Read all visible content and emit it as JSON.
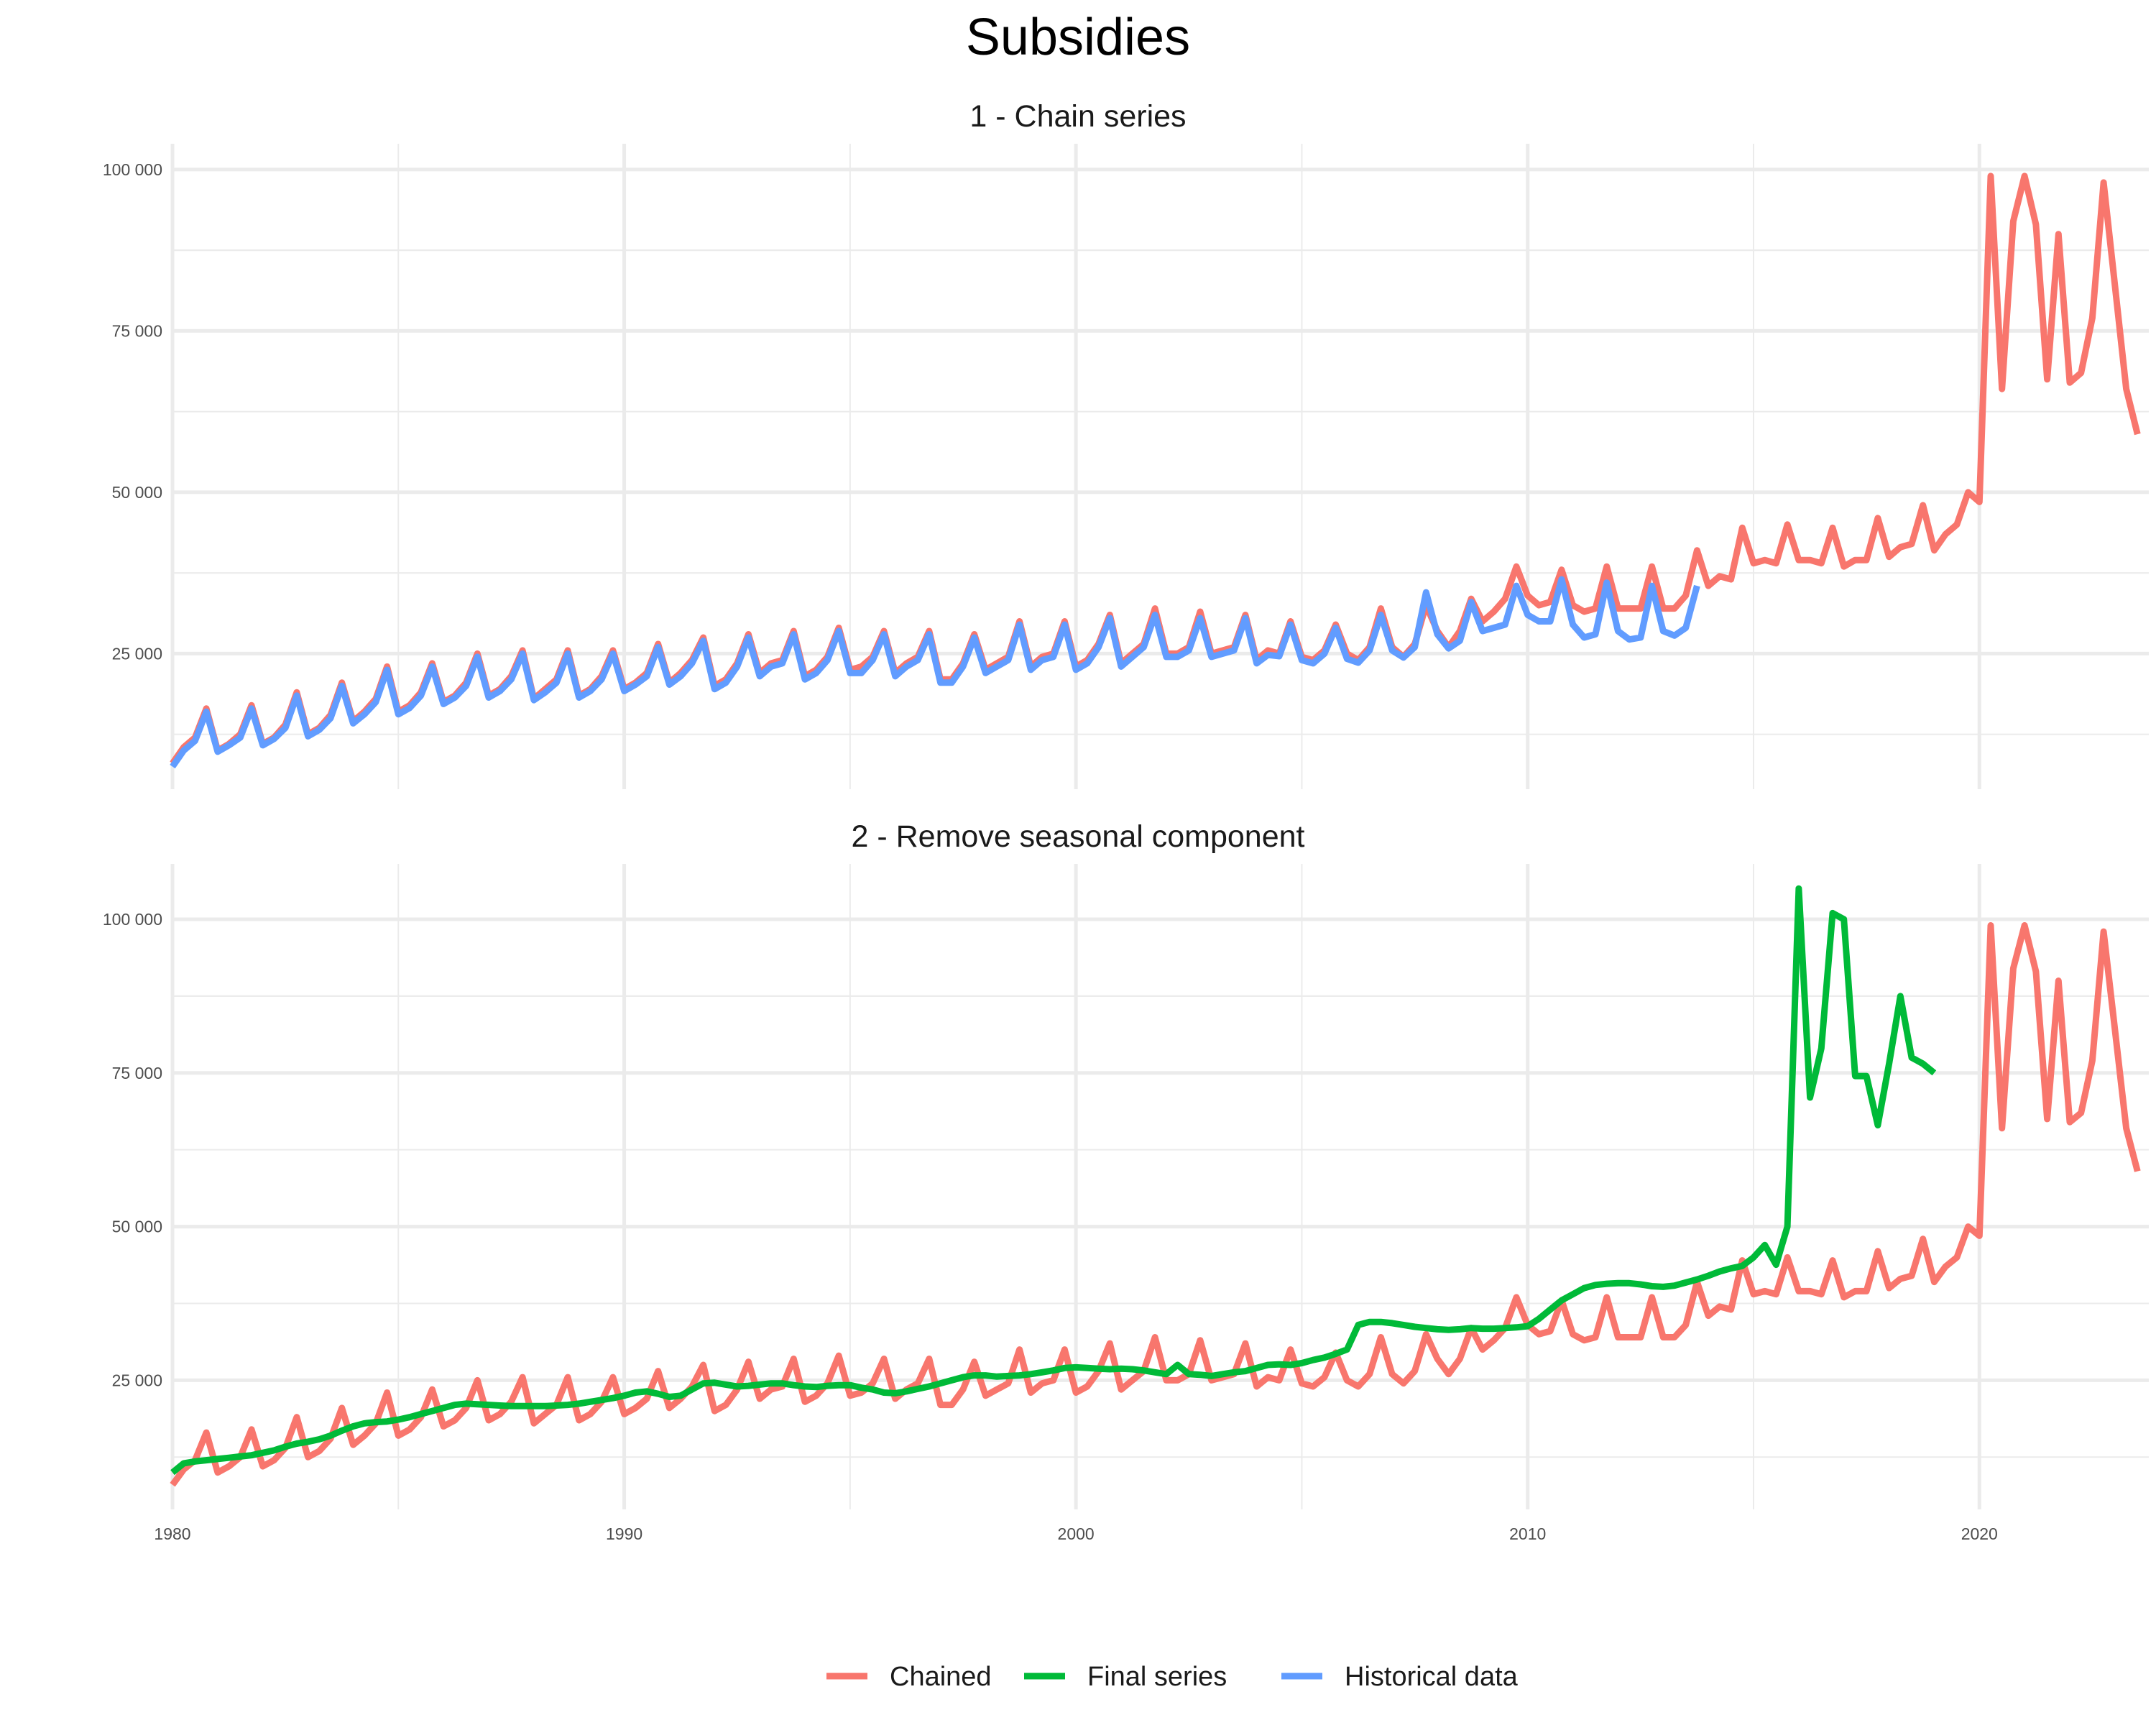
{
  "chart_data": {
    "type": "line",
    "title": "Subsidies",
    "x_axis": {
      "ticks": [
        1980,
        1990,
        2000,
        2010,
        2020
      ],
      "tick_labels": [
        "1980",
        "1990",
        "2000",
        "2010",
        "2020"
      ],
      "range": [
        1980,
        2023.75
      ]
    },
    "y_axis": {
      "ticks": [
        25000,
        50000,
        75000,
        100000
      ],
      "tick_labels": [
        "25 000",
        "50 000",
        "75 000",
        "100 000"
      ]
    },
    "grid": true,
    "legend_position": "bottom",
    "legend": [
      {
        "name": "Chained",
        "color": "#F8766D"
      },
      {
        "name": "Final series",
        "color": "#00BA38"
      },
      {
        "name": "Historical data",
        "color": "#619CFF"
      }
    ],
    "panels": [
      {
        "title": "1 - Chain series",
        "ylim": [
          4000,
          104000
        ],
        "series": [
          "Chained",
          "Historical data"
        ]
      },
      {
        "title": "2 - Remove seasonal component",
        "ylim": [
          4000,
          109000
        ],
        "series": [
          "Chained",
          "Final series"
        ]
      }
    ],
    "series": {
      "chained": {
        "name": "Chained",
        "x_start": 1980,
        "x_step": 0.25,
        "values": [
          8000,
          10500,
          12000,
          16500,
          10000,
          11000,
          12500,
          17000,
          11000,
          12000,
          14000,
          19000,
          12500,
          13500,
          15500,
          20500,
          14500,
          16000,
          18000,
          23000,
          16000,
          17000,
          19000,
          23500,
          17500,
          18500,
          20500,
          25000,
          18500,
          19500,
          21500,
          25500,
          18000,
          19500,
          21000,
          25500,
          18500,
          19500,
          21500,
          25500,
          19500,
          20500,
          22000,
          26500,
          20500,
          22000,
          24000,
          27500,
          20000,
          21000,
          23500,
          28000,
          22000,
          23500,
          24000,
          28500,
          21500,
          22500,
          24500,
          29000,
          22500,
          23000,
          24500,
          28500,
          22000,
          23500,
          24500,
          28500,
          21000,
          21000,
          23500,
          28000,
          22500,
          23500,
          24500,
          30000,
          23000,
          24500,
          25000,
          30000,
          23000,
          24000,
          26500,
          31000,
          23500,
          25000,
          26500,
          32000,
          25000,
          25000,
          26000,
          31500,
          25000,
          25500,
          26000,
          31000,
          24000,
          25500,
          25000,
          30000,
          24500,
          24000,
          25500,
          29500,
          25000,
          24000,
          26000,
          32000,
          26000,
          24500,
          26500,
          32500,
          28500,
          26000,
          28500,
          33500,
          30000,
          31500,
          33500,
          38500,
          34000,
          32500,
          33000,
          38000,
          32500,
          31500,
          32000,
          38500,
          32000,
          32000,
          32000,
          38500,
          32000,
          32000,
          34000,
          41000,
          35500,
          37000,
          36500,
          44500,
          39000,
          39500,
          39000,
          45000,
          39500,
          39500,
          39000,
          44500,
          38500,
          39500,
          39500,
          46000,
          40000,
          41500,
          42000,
          48000,
          41000,
          43500,
          45000,
          50000,
          48500,
          99000,
          66000,
          92000,
          99000,
          91500,
          67500,
          90000,
          67000,
          68500,
          77000,
          98000,
          82000,
          66000,
          59000
        ]
      },
      "historical": {
        "name": "Historical data",
        "x_start": 1980,
        "x_step": 0.25,
        "values": [
          7500,
          10000,
          11500,
          16000,
          9800,
          10800,
          12000,
          16500,
          10800,
          11800,
          13500,
          18500,
          12200,
          13200,
          15000,
          20000,
          14200,
          15600,
          17500,
          22500,
          15600,
          16600,
          18500,
          23000,
          17200,
          18200,
          20000,
          24500,
          18200,
          19200,
          21000,
          25000,
          17800,
          19000,
          20500,
          25000,
          18200,
          19200,
          21000,
          25000,
          19200,
          20200,
          21500,
          26000,
          20200,
          21500,
          23500,
          27000,
          19500,
          20500,
          23000,
          27500,
          21500,
          23000,
          23500,
          28000,
          21000,
          22000,
          24000,
          28500,
          22000,
          22000,
          24000,
          28000,
          21500,
          23000,
          24000,
          28000,
          20500,
          20500,
          23000,
          27500,
          22000,
          23000,
          24000,
          29500,
          22500,
          24000,
          24500,
          29500,
          22500,
          23500,
          26000,
          30500,
          23000,
          24500,
          26000,
          31000,
          24500,
          24500,
          25500,
          30500,
          24500,
          25000,
          25500,
          30500,
          23500,
          24800,
          24600,
          29500,
          24000,
          23500,
          25000,
          29000,
          24200,
          23600,
          25500,
          31000,
          25500,
          24400,
          26000,
          34500,
          28000,
          25800,
          27000,
          33000,
          28500,
          29000,
          29500,
          35500,
          31000,
          30000,
          30000,
          36500,
          29500,
          27500,
          28000,
          36000,
          28500,
          27200,
          27500,
          35500,
          28500,
          27800,
          29000,
          35500
        ]
      },
      "final": {
        "name": "Final series",
        "x_start": 1980,
        "x_step": 0.25,
        "values": [
          10000,
          11500,
          11800,
          12000,
          12200,
          12400,
          12600,
          12800,
          13200,
          13600,
          14200,
          14700,
          15000,
          15400,
          16000,
          16800,
          17500,
          18000,
          18200,
          18300,
          18600,
          19000,
          19500,
          20000,
          20500,
          21000,
          21200,
          21100,
          21000,
          20900,
          20800,
          20800,
          20800,
          20800,
          20900,
          21000,
          21200,
          21500,
          21800,
          22100,
          22500,
          23000,
          23200,
          22800,
          22300,
          22500,
          23500,
          24500,
          24600,
          24300,
          24000,
          24100,
          24300,
          24500,
          24500,
          24200,
          24000,
          23900,
          24100,
          24200,
          24200,
          23800,
          23500,
          23000,
          22900,
          23200,
          23600,
          24000,
          24500,
          25000,
          25500,
          25800,
          25800,
          25600,
          25700,
          25800,
          26000,
          26300,
          26600,
          27000,
          27100,
          27000,
          26900,
          26800,
          26900,
          26800,
          26600,
          26300,
          26000,
          27500,
          26000,
          25900,
          25700,
          26000,
          26300,
          26500,
          27000,
          27500,
          27600,
          27500,
          27800,
          28300,
          28700,
          29300,
          30000,
          34000,
          34500,
          34500,
          34300,
          34000,
          33700,
          33500,
          33300,
          33200,
          33300,
          33500,
          33400,
          33400,
          33500,
          33600,
          33800,
          35000,
          36500,
          38000,
          39000,
          40000,
          40500,
          40700,
          40800,
          40800,
          40600,
          40300,
          40200,
          40400,
          40900,
          41400,
          42000,
          42700,
          43200,
          43600,
          45000,
          47000,
          43800,
          50000,
          105000,
          71000,
          79000,
          101000,
          100000,
          74500,
          74500,
          66500,
          76500,
          87500,
          77500,
          76500,
          75000
        ]
      }
    }
  }
}
